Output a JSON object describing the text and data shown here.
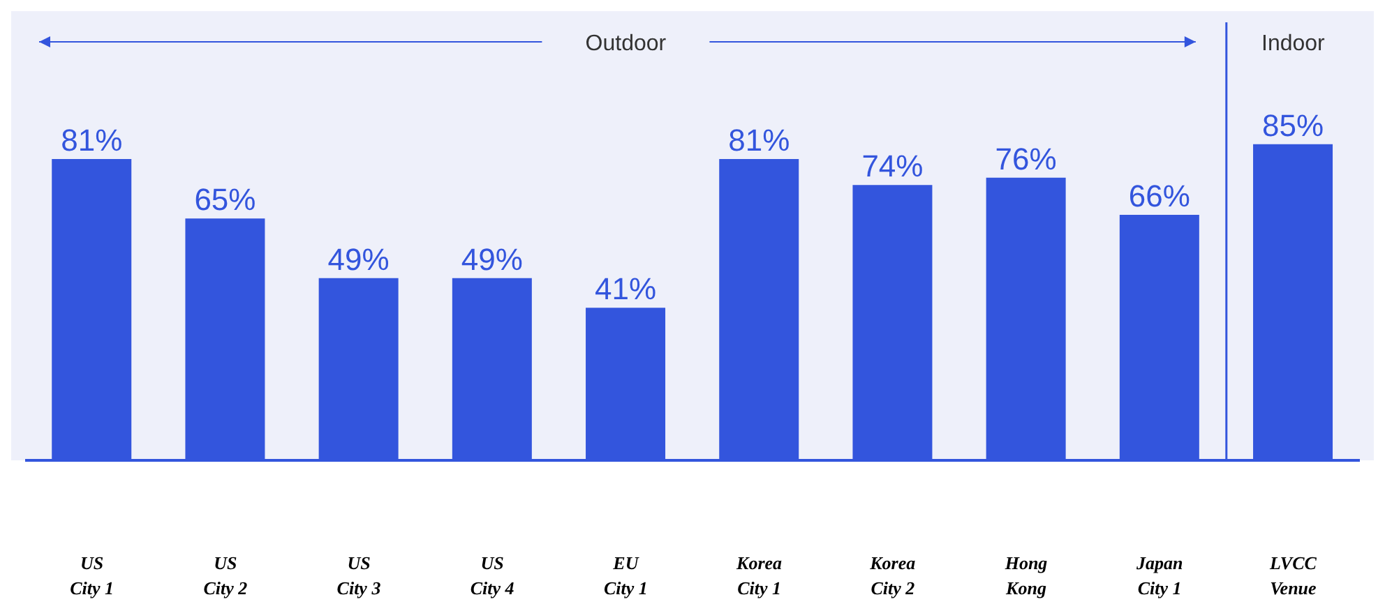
{
  "chart_data": {
    "type": "bar",
    "categories": [
      "US City 1",
      "US City 2",
      "US City 3",
      "US City 4",
      "EU City 1",
      "Korea City 1",
      "Korea City 2",
      "Hong Kong",
      "Japan City 1",
      "LVCC Venue"
    ],
    "values": [
      81,
      65,
      49,
      49,
      41,
      81,
      74,
      76,
      66,
      85
    ],
    "value_labels": [
      "81%",
      "65%",
      "49%",
      "49%",
      "41%",
      "81%",
      "74%",
      "76%",
      "66%",
      "85%"
    ],
    "color": "#3355dd",
    "ref_lines": [
      {
        "axis": "x",
        "value": "LVCC Venue",
        "color": "#3355dd"
      }
    ],
    "annotations": [
      "Outdoor",
      "Indoor"
    ]
  }
}
